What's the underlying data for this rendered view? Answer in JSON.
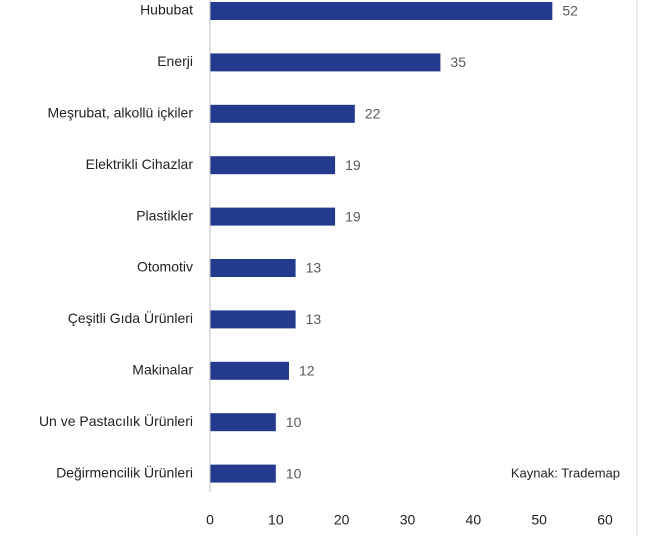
{
  "chart_data": {
    "type": "bar",
    "orientation": "horizontal",
    "categories": [
      "Hububat",
      "Enerji",
      "Meşrubat, alkollü içkiler",
      "Elektrikli Cihazlar",
      "Plastikler",
      "Otomotiv",
      "Çeşitli Gıda Ürünleri",
      "Makinalar",
      "Un ve Pastacılık Ürünleri",
      "Değirmencilik Ürünleri"
    ],
    "values": [
      52,
      35,
      22,
      19,
      19,
      13,
      13,
      12,
      10,
      10
    ],
    "color": "#233a8f",
    "xlim": [
      0,
      60
    ],
    "xticks": [
      0,
      10,
      20,
      30,
      40,
      50,
      60
    ],
    "grid": false,
    "annotation": "Kaynak: Trademap"
  }
}
